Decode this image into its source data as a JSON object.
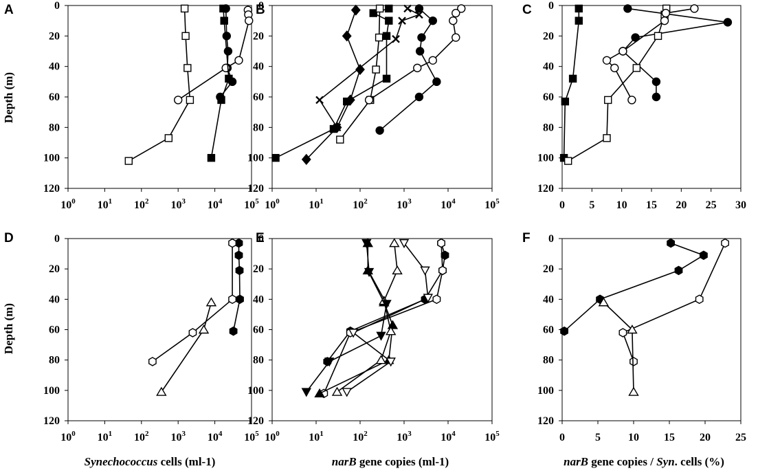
{
  "colors": {
    "ink": "#000000",
    "paper": "#ffffff"
  },
  "figure": {
    "ylabel": "Depth (m)",
    "xlabels": {
      "left": {
        "italic": "Synechococcus",
        "rest": " cells (ml-1)"
      },
      "middle": {
        "italic": "narB",
        "rest": " gene copies (ml-1)"
      },
      "right": {
        "italic": "narB",
        "rest": " gene copies / ",
        "italic2": "Syn",
        "rest2": ". cells (%)"
      }
    }
  },
  "chart_data": [
    {
      "panel": "A",
      "type": "line",
      "x_scale": "log",
      "xlim": [
        1,
        100000
      ],
      "ylim": [
        0,
        120
      ],
      "y_inverted": true,
      "x_ticks": [
        "10^0",
        "10^1",
        "10^2",
        "10^3",
        "10^4",
        "10^5"
      ],
      "y_ticks": [
        0,
        20,
        40,
        60,
        80,
        100,
        120
      ],
      "series": [
        {
          "marker": "open-square",
          "points": [
            [
              1500,
              2
            ],
            [
              1600,
              20
            ],
            [
              1800,
              41
            ],
            [
              2100,
              62
            ],
            [
              550,
              87
            ],
            [
              45,
              102
            ]
          ]
        },
        {
          "marker": "filled-circle",
          "points": [
            [
              20000,
              2
            ],
            [
              21000,
              20
            ],
            [
              23000,
              30
            ],
            [
              22000,
              41
            ],
            [
              30000,
              50
            ],
            [
              14000,
              60
            ]
          ]
        },
        {
          "marker": "open-circle",
          "points": [
            [
              80000,
              3
            ],
            [
              82000,
              6
            ],
            [
              85000,
              10
            ],
            [
              45000,
              36
            ],
            [
              20000,
              41
            ],
            [
              1000,
              62
            ]
          ]
        },
        {
          "marker": "filled-square",
          "points": [
            [
              17000,
              2
            ],
            [
              18000,
              10
            ],
            [
              24000,
              48
            ],
            [
              15000,
              62
            ],
            [
              8000,
              100
            ]
          ]
        }
      ]
    },
    {
      "panel": "B",
      "type": "line",
      "x_scale": "log",
      "xlim": [
        1,
        100000
      ],
      "ylim": [
        0,
        120
      ],
      "y_inverted": true,
      "x_ticks": [
        "10^0",
        "10^1",
        "10^2",
        "10^3",
        "10^4",
        "10^5"
      ],
      "y_ticks": [
        0,
        20,
        40,
        60,
        80,
        100,
        120
      ],
      "series": [
        {
          "marker": "filled-diamond",
          "points": [
            [
              80,
              3
            ],
            [
              50,
              20
            ],
            [
              100,
              42
            ],
            [
              60,
              62
            ],
            [
              30,
              80
            ],
            [
              6,
              101
            ]
          ]
        },
        {
          "marker": "filled-square",
          "points": [
            [
              450,
              2
            ],
            [
              200,
              5
            ],
            [
              450,
              10
            ],
            [
              400,
              20
            ],
            [
              400,
              48
            ],
            [
              50,
              63
            ],
            [
              25,
              81
            ],
            [
              1.2,
              100
            ]
          ]
        },
        {
          "marker": "cross",
          "points": [
            [
              1200,
              2
            ],
            [
              2200,
              6
            ],
            [
              900,
              10
            ],
            [
              650,
              22
            ],
            [
              12,
              62
            ],
            [
              30,
              80
            ]
          ]
        },
        {
          "marker": "open-square",
          "points": [
            [
              280,
              2
            ],
            [
              270,
              21
            ],
            [
              230,
              42
            ],
            [
              170,
              62
            ],
            [
              35,
              88
            ]
          ]
        },
        {
          "marker": "filled-circle",
          "points": [
            [
              2200,
              2
            ],
            [
              4500,
              10
            ],
            [
              2500,
              21
            ],
            [
              2300,
              30
            ],
            [
              5500,
              50
            ],
            [
              2200,
              60
            ],
            [
              280,
              82
            ]
          ]
        },
        {
          "marker": "open-circle",
          "points": [
            [
              20000,
              2
            ],
            [
              15000,
              5
            ],
            [
              13000,
              10
            ],
            [
              15000,
              21
            ],
            [
              4500,
              36
            ],
            [
              2000,
              41
            ],
            [
              160,
              62
            ]
          ]
        }
      ]
    },
    {
      "panel": "C",
      "type": "line",
      "x_scale": "linear",
      "xlim": [
        0,
        30
      ],
      "ylim": [
        0,
        120
      ],
      "y_inverted": true,
      "x_ticks": [
        0,
        5,
        10,
        15,
        20,
        25,
        30
      ],
      "y_ticks": [
        0,
        20,
        40,
        60,
        80,
        100,
        120
      ],
      "series": [
        {
          "marker": "filled-square",
          "points": [
            [
              2.8,
              2
            ],
            [
              2.8,
              10
            ],
            [
              1.8,
              48
            ],
            [
              0.5,
              63
            ],
            [
              0.3,
              100
            ]
          ]
        },
        {
          "marker": "filled-circle",
          "points": [
            [
              11,
              2
            ],
            [
              27.8,
              11
            ],
            [
              12.3,
              21
            ],
            [
              10.2,
              30
            ],
            [
              15.8,
              50
            ],
            [
              15.8,
              60
            ]
          ]
        },
        {
          "marker": "open-square",
          "points": [
            [
              17.5,
              2
            ],
            [
              17.2,
              6
            ],
            [
              16.1,
              20
            ],
            [
              12.5,
              41
            ],
            [
              7.7,
              62
            ],
            [
              7.5,
              87
            ],
            [
              1,
              102
            ]
          ]
        },
        {
          "marker": "open-circle",
          "points": [
            [
              22.2,
              2
            ],
            [
              17.4,
              5
            ],
            [
              17.2,
              10
            ],
            [
              10.2,
              30
            ],
            [
              7.5,
              36
            ],
            [
              8.8,
              41
            ],
            [
              11.7,
              62
            ]
          ]
        }
      ]
    },
    {
      "panel": "D",
      "type": "line",
      "x_scale": "log",
      "xlim": [
        1,
        100000
      ],
      "ylim": [
        0,
        120
      ],
      "y_inverted": true,
      "x_ticks": [
        "10^0",
        "10^1",
        "10^2",
        "10^3",
        "10^4",
        "10^5"
      ],
      "y_ticks": [
        0,
        20,
        40,
        60,
        80,
        100,
        120
      ],
      "series": [
        {
          "marker": "filled-hexagon",
          "points": [
            [
              45000,
              3
            ],
            [
              45000,
              11
            ],
            [
              47000,
              21
            ],
            [
              48000,
              40
            ],
            [
              32000,
              61
            ]
          ]
        },
        {
          "marker": "open-hexagon",
          "points": [
            [
              30000,
              3
            ],
            [
              30000,
              40
            ],
            [
              2500,
              62
            ],
            [
              200,
              81
            ]
          ]
        },
        {
          "marker": "open-triangle",
          "points": [
            [
              8000,
              42
            ],
            [
              5000,
              60
            ],
            [
              350,
              101
            ]
          ]
        }
      ]
    },
    {
      "panel": "E",
      "type": "line",
      "x_scale": "log",
      "xlim": [
        1,
        100000
      ],
      "ylim": [
        0,
        120
      ],
      "y_inverted": true,
      "x_ticks": [
        "10^0",
        "10^1",
        "10^2",
        "10^3",
        "10^4",
        "10^5"
      ],
      "y_ticks": [
        0,
        20,
        40,
        60,
        80,
        100,
        120
      ],
      "series": [
        {
          "marker": "filled-hexagon",
          "points": [
            [
              7000,
              3
            ],
            [
              8500,
              11
            ],
            [
              7500,
              21
            ],
            [
              3000,
              40
            ],
            [
              60,
              61
            ],
            [
              18,
              81
            ]
          ]
        },
        {
          "marker": "open-hexagon",
          "points": [
            [
              7000,
              3
            ],
            [
              7500,
              21
            ],
            [
              5500,
              40
            ],
            [
              60,
              62
            ],
            [
              15,
              102
            ]
          ]
        },
        {
          "marker": "filled-triangle",
          "points": [
            [
              150,
              3
            ],
            [
              150,
              21
            ],
            [
              350,
              42
            ],
            [
              550,
              57
            ],
            [
              450,
              80
            ],
            [
              12,
              102
            ]
          ]
        },
        {
          "marker": "open-triangle",
          "points": [
            [
              600,
              3
            ],
            [
              700,
              21
            ],
            [
              350,
              41
            ],
            [
              500,
              61
            ],
            [
              300,
              80
            ],
            [
              30,
              101
            ]
          ]
        },
        {
          "marker": "filled-down-triangle",
          "points": [
            [
              140,
              3
            ],
            [
              160,
              22
            ],
            [
              400,
              43
            ],
            [
              300,
              64
            ],
            [
              20,
              81
            ],
            [
              6,
              101
            ]
          ]
        },
        {
          "marker": "open-down-triangle",
          "points": [
            [
              1000,
              3
            ],
            [
              3000,
              21
            ],
            [
              3500,
              39
            ],
            [
              70,
              62
            ],
            [
              500,
              81
            ],
            [
              50,
              101
            ]
          ]
        }
      ]
    },
    {
      "panel": "F",
      "type": "line",
      "x_scale": "linear",
      "xlim": [
        0,
        25
      ],
      "ylim": [
        0,
        120
      ],
      "y_inverted": true,
      "x_ticks": [
        0,
        5,
        10,
        15,
        20,
        25
      ],
      "y_ticks": [
        0,
        20,
        40,
        60,
        80,
        100,
        120
      ],
      "series": [
        {
          "marker": "filled-hexagon",
          "points": [
            [
              15.2,
              3
            ],
            [
              19.8,
              11
            ],
            [
              16.3,
              21
            ],
            [
              5.3,
              40
            ],
            [
              0.3,
              61
            ]
          ]
        },
        {
          "marker": "open-hexagon",
          "points": [
            [
              22.8,
              3
            ],
            [
              19.2,
              40
            ],
            [
              8.5,
              62
            ],
            [
              10,
              81
            ]
          ]
        },
        {
          "marker": "open-triangle",
          "points": [
            [
              5.8,
              42
            ],
            [
              9.8,
              60
            ],
            [
              10,
              101
            ]
          ]
        }
      ]
    }
  ]
}
